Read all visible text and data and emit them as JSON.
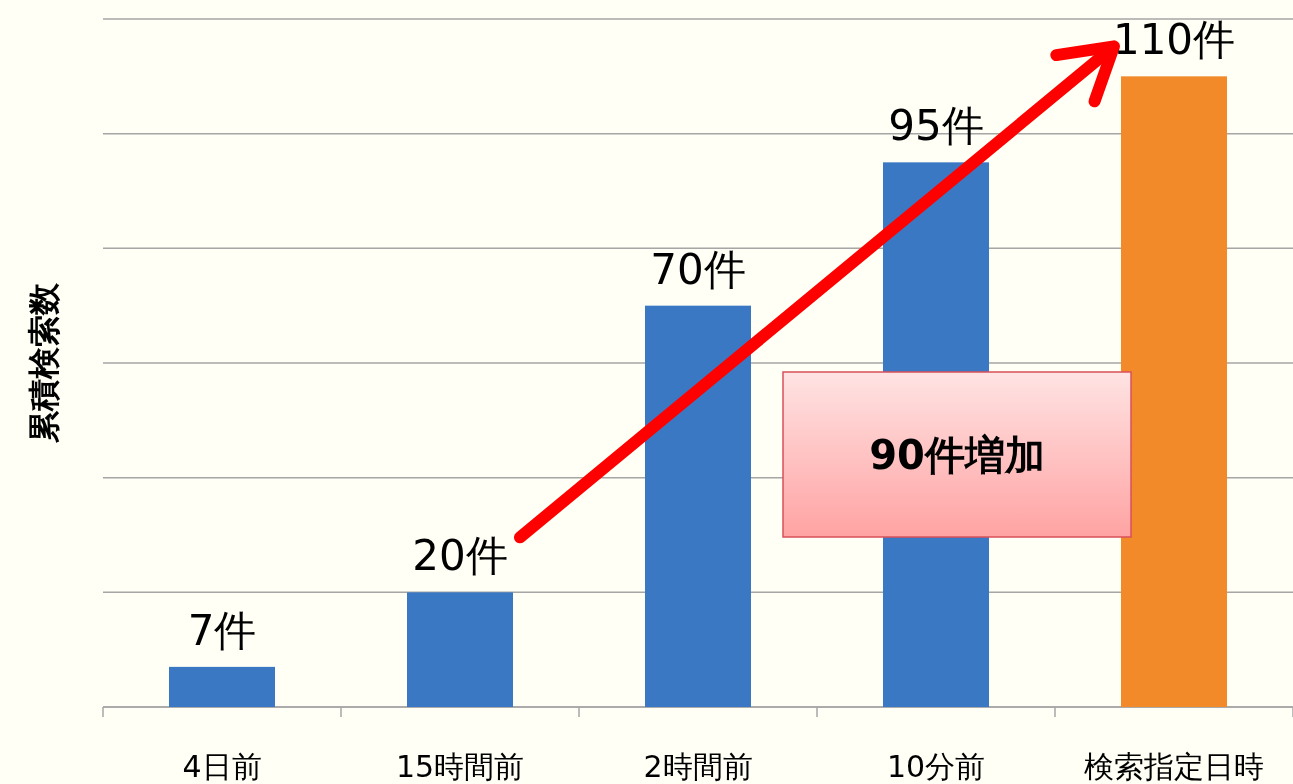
{
  "chart_data": {
    "type": "bar",
    "ylabel": "累積検索数",
    "categories": [
      "4日前",
      "15時間前",
      "2時間前",
      "10分前",
      "検索指定日時"
    ],
    "values": [
      7,
      20,
      70,
      95,
      110
    ],
    "value_labels": [
      "7件",
      "20件",
      "70件",
      "95件",
      "110件"
    ],
    "colors": [
      "#3b78c4",
      "#3b78c4",
      "#3b78c4",
      "#3b78c4",
      "#f28a2a"
    ],
    "ylim": [
      0,
      120
    ],
    "yticks": [
      {
        "value": 0,
        "label": null
      },
      {
        "value": 20,
        "label": null
      },
      {
        "value": 40,
        "label": null
      },
      {
        "value": 60,
        "label": null
      },
      {
        "value": 80,
        "label": null
      },
      {
        "value": 100,
        "label": null
      },
      {
        "value": 120,
        "label": null
      }
    ],
    "grid": "y",
    "annotations": [
      "90件増加"
    ]
  }
}
